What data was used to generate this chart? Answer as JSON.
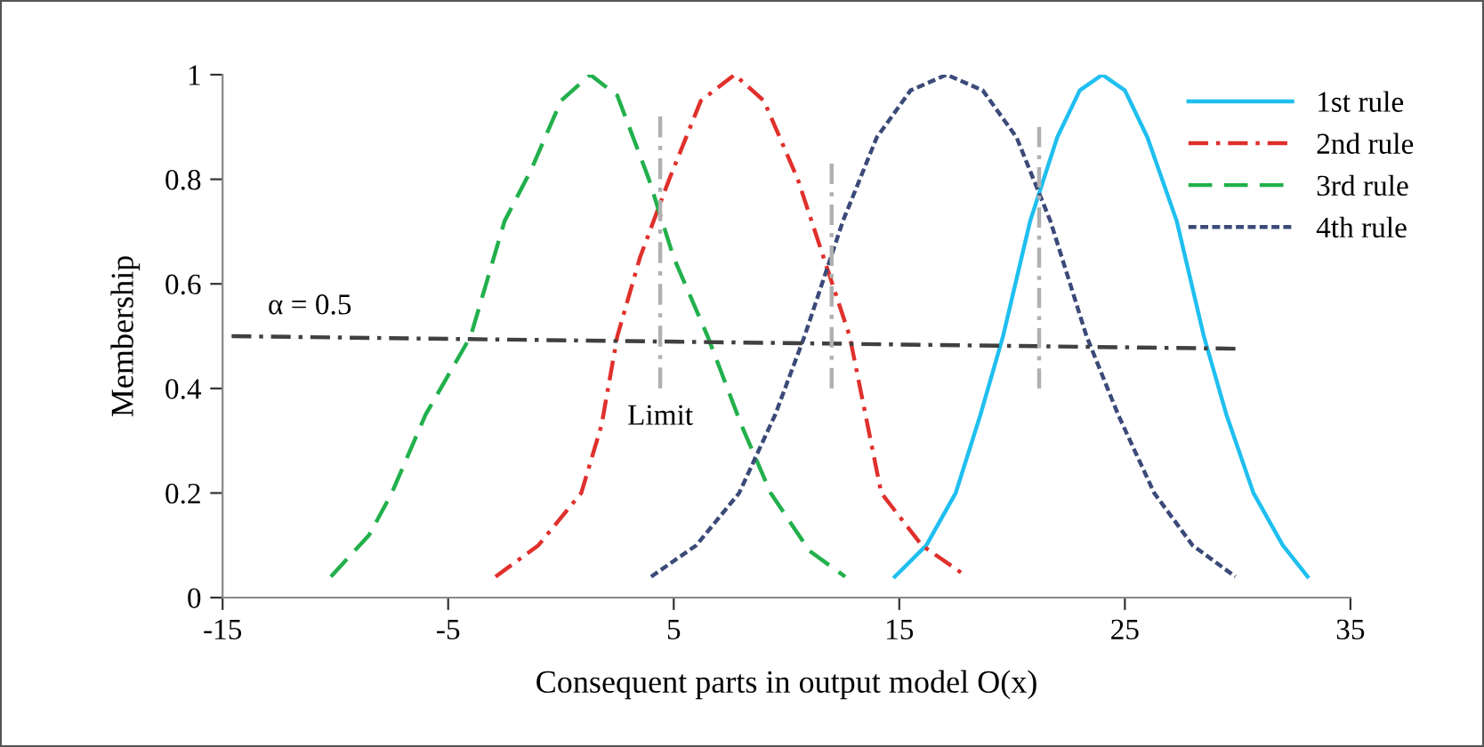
{
  "chart_data": {
    "type": "line",
    "xlabel": "Consequent parts in output model O(x)",
    "ylabel": "Membership",
    "xlim": [
      -15,
      35
    ],
    "xticks": [
      -15,
      -5,
      5,
      15,
      25,
      35
    ],
    "ylim": [
      0,
      1
    ],
    "yticks": [
      0,
      0.2,
      0.4,
      0.6,
      0.8,
      1
    ],
    "grid": false,
    "legend": "top right",
    "marker": "none",
    "annotations": [
      "α = 0.5",
      {
        "text": "Limit",
        "x": 4.4,
        "y": 0.4
      }
    ],
    "series": [
      {
        "name": "1st rule",
        "color": "#1fbfef",
        "line_style": "solid",
        "x": [
          14.8,
          16.2,
          17.5,
          18.6,
          19.6,
          20.8,
          22,
          23,
          24,
          25,
          26,
          27.3,
          28.5,
          29.5,
          30.7,
          32,
          33.1
        ],
        "values": [
          0.04,
          0.1,
          0.2,
          0.35,
          0.5,
          0.72,
          0.88,
          0.97,
          1,
          0.97,
          0.88,
          0.72,
          0.5,
          0.35,
          0.2,
          0.1,
          0.04
        ]
      },
      {
        "name": "2nd rule",
        "color": "#e0302c",
        "line_style": "dashdot",
        "x": [
          -2.9,
          -1,
          0.9,
          1.8,
          2.5,
          3.5,
          4.8,
          6.2,
          7.7,
          9,
          10.5,
          11.8,
          12.8,
          13.5,
          14.2,
          16,
          18
        ],
        "values": [
          0.04,
          0.1,
          0.2,
          0.33,
          0.5,
          0.65,
          0.8,
          0.95,
          1,
          0.95,
          0.8,
          0.63,
          0.5,
          0.35,
          0.2,
          0.1,
          0.04
        ]
      },
      {
        "name": "3rd rule",
        "color": "#22b04c",
        "line_style": "dashed",
        "x": [
          -10.2,
          -8.5,
          -7.5,
          -6,
          -4,
          -2.5,
          -1.3,
          0,
          1.3,
          2.5,
          3.9,
          5,
          6.5,
          8,
          9.3,
          11,
          12.6
        ],
        "values": [
          0.04,
          0.12,
          0.2,
          0.35,
          0.5,
          0.72,
          0.82,
          0.95,
          1,
          0.96,
          0.8,
          0.65,
          0.5,
          0.33,
          0.2,
          0.09,
          0.04
        ]
      },
      {
        "name": "4th rule",
        "color": "#3b4a78",
        "line_style": "dotted",
        "x": [
          4,
          6,
          7.9,
          9.5,
          10.8,
          12.5,
          14,
          15.5,
          17.1,
          18.7,
          20.2,
          21.7,
          23.3,
          24.7,
          26.3,
          28,
          29.9
        ],
        "values": [
          0.04,
          0.1,
          0.2,
          0.35,
          0.5,
          0.72,
          0.88,
          0.97,
          1,
          0.97,
          0.88,
          0.72,
          0.5,
          0.35,
          0.2,
          0.1,
          0.04
        ]
      },
      {
        "color": "#404040",
        "line_style": "dashdot",
        "x": [
          -14.6,
          29.9
        ],
        "values": [
          0.5,
          0.476
        ]
      },
      {
        "color": "#b0b0b0",
        "line_style": "dashdot",
        "x": [
          4.4,
          4.4
        ],
        "values": [
          0.92,
          0.4
        ]
      },
      {
        "color": "#b0b0b0",
        "line_style": "dashdot",
        "x": [
          12.0,
          12.0
        ],
        "values": [
          0.83,
          0.4
        ]
      },
      {
        "color": "#b0b0b0",
        "line_style": "dashdot",
        "x": [
          21.2,
          21.2
        ],
        "values": [
          0.9,
          0.4
        ]
      }
    ]
  }
}
